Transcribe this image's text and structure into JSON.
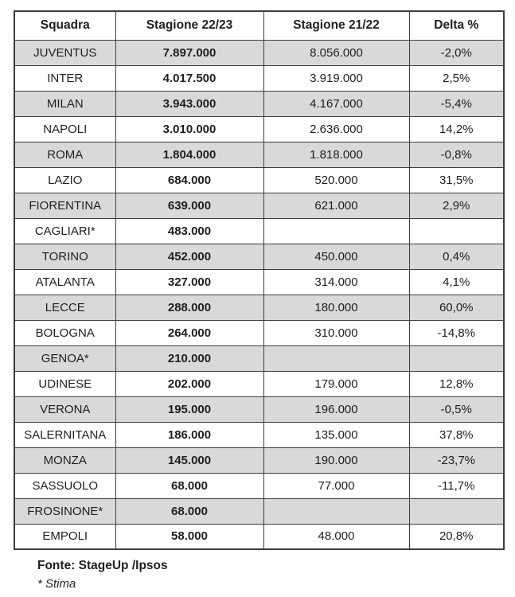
{
  "colors": {
    "row_stripe": "#d9d9d9",
    "border": "#3c3c3c",
    "text": "#1f1f1f",
    "background": "#ffffff"
  },
  "table": {
    "columns": [
      "Squadra",
      "Stagione 22/23",
      "Stagione 21/22",
      "Delta %"
    ],
    "rows": [
      {
        "squadra": "JUVENTUS",
        "stagione_22_23": "7.897.000",
        "stagione_21_22": "8.056.000",
        "delta": "-2,0%"
      },
      {
        "squadra": "INTER",
        "stagione_22_23": "4.017.500",
        "stagione_21_22": "3.919.000",
        "delta": "2,5%"
      },
      {
        "squadra": "MILAN",
        "stagione_22_23": "3.943.000",
        "stagione_21_22": "4.167.000",
        "delta": "-5,4%"
      },
      {
        "squadra": "NAPOLI",
        "stagione_22_23": "3.010.000",
        "stagione_21_22": "2.636.000",
        "delta": "14,2%"
      },
      {
        "squadra": "ROMA",
        "stagione_22_23": "1.804.000",
        "stagione_21_22": "1.818.000",
        "delta": "-0,8%"
      },
      {
        "squadra": "LAZIO",
        "stagione_22_23": "684.000",
        "stagione_21_22": "520.000",
        "delta": "31,5%"
      },
      {
        "squadra": "FIORENTINA",
        "stagione_22_23": "639.000",
        "stagione_21_22": "621.000",
        "delta": "2,9%"
      },
      {
        "squadra": "CAGLIARI*",
        "stagione_22_23": "483.000",
        "stagione_21_22": "",
        "delta": ""
      },
      {
        "squadra": "TORINO",
        "stagione_22_23": "452.000",
        "stagione_21_22": "450.000",
        "delta": "0,4%"
      },
      {
        "squadra": "ATALANTA",
        "stagione_22_23": "327.000",
        "stagione_21_22": "314.000",
        "delta": "4,1%"
      },
      {
        "squadra": "LECCE",
        "stagione_22_23": "288.000",
        "stagione_21_22": "180.000",
        "delta": "60,0%"
      },
      {
        "squadra": "BOLOGNA",
        "stagione_22_23": "264.000",
        "stagione_21_22": "310.000",
        "delta": "-14,8%"
      },
      {
        "squadra": "GENOA*",
        "stagione_22_23": "210.000",
        "stagione_21_22": "",
        "delta": ""
      },
      {
        "squadra": "UDINESE",
        "stagione_22_23": "202.000",
        "stagione_21_22": "179.000",
        "delta": "12,8%"
      },
      {
        "squadra": "VERONA",
        "stagione_22_23": "195.000",
        "stagione_21_22": "196.000",
        "delta": "-0,5%"
      },
      {
        "squadra": "SALERNITANA",
        "stagione_22_23": "186.000",
        "stagione_21_22": "135.000",
        "delta": "37,8%"
      },
      {
        "squadra": "MONZA",
        "stagione_22_23": "145.000",
        "stagione_21_22": "190.000",
        "delta": "-23,7%"
      },
      {
        "squadra": "SASSUOLO",
        "stagione_22_23": "68.000",
        "stagione_21_22": "77.000",
        "delta": "-11,7%"
      },
      {
        "squadra": "FROSINONE*",
        "stagione_22_23": "68.000",
        "stagione_21_22": "",
        "delta": ""
      },
      {
        "squadra": "EMPOLI",
        "stagione_22_23": "58.000",
        "stagione_21_22": "48.000",
        "delta": "20,8%"
      }
    ]
  },
  "footer": {
    "fonte": "Fonte: StageUp /Ipsos",
    "stima": "* Stima"
  }
}
